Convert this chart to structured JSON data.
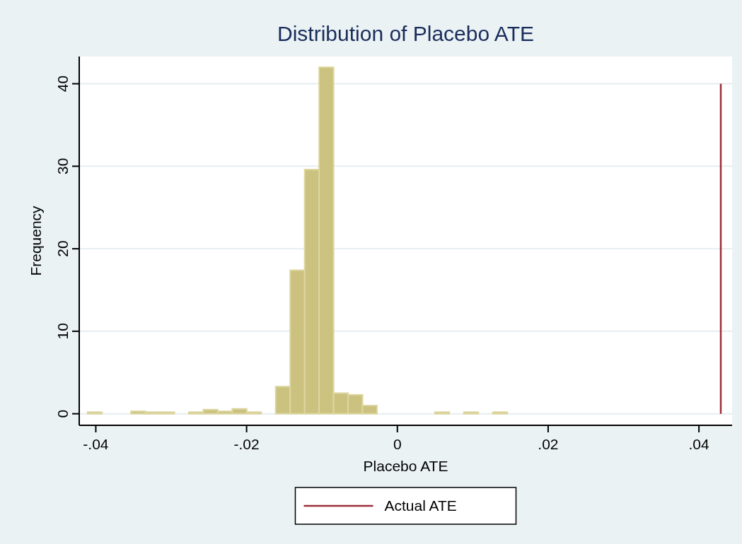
{
  "chart_data": {
    "type": "histogram",
    "title": "Distribution of Placebo ATE",
    "xlabel": "Placebo ATE",
    "ylabel": "Frequency",
    "bins": [
      -0.0411,
      -0.03918,
      -0.03726,
      -0.03534,
      -0.03342,
      -0.0315,
      -0.02958,
      -0.02766,
      -0.02574,
      -0.02382,
      -0.0219,
      -0.01998,
      -0.01806,
      -0.01614,
      -0.01422,
      -0.0123,
      -0.01038,
      -0.00846,
      -0.00654,
      -0.00462,
      -0.0027,
      -0.00078,
      0.00114,
      0.00306,
      0.00498,
      0.0069,
      0.00882,
      0.01074,
      0.01266,
      0.01458
    ],
    "series": [
      {
        "color": "#cbc27f",
        "values": [
          0.2,
          0,
          0,
          0.3,
          0.2,
          0.2,
          0,
          0.2,
          0.5,
          0.3,
          0.6,
          0.2,
          0,
          3.3,
          17.4,
          29.6,
          42.0,
          2.5,
          2.3,
          1.0,
          0,
          0,
          0,
          0,
          0.2,
          0,
          0.2,
          0,
          0.2
        ]
      },
      {
        "type": "line",
        "name": "Actual ATE",
        "color": "#9b2d3a",
        "x": [
          0.0429,
          0.0429
        ],
        "values": [
          0,
          40
        ]
      }
    ],
    "xlim": [
      -0.0422,
      0.0444
    ],
    "xticks": [
      {
        "value": -0.04,
        "label": "-.04"
      },
      {
        "value": -0.02,
        "label": "-.02"
      },
      0,
      {
        "value": 0.02,
        "label": ".02"
      },
      {
        "value": 0.04,
        "label": ".04"
      }
    ],
    "ylim": [
      -1.4,
      43.3
    ],
    "yticks": [
      0,
      10,
      20,
      30,
      40
    ],
    "grid": "y",
    "legend": "bottom"
  }
}
